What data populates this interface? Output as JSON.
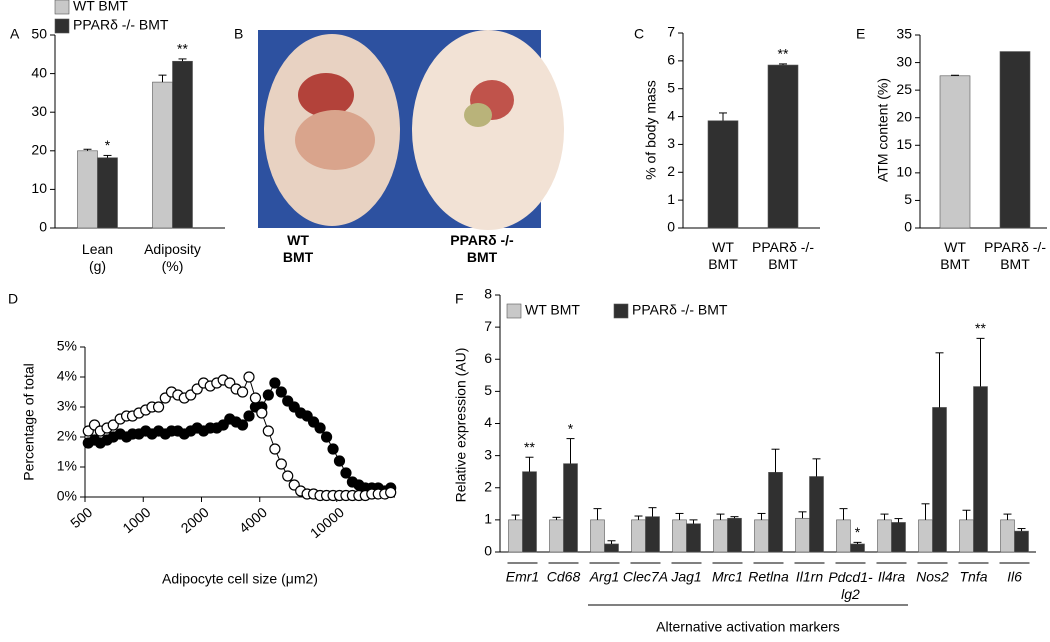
{
  "photo": {
    "panel": "B",
    "labels": [
      "WT\nBMT",
      "PPARδ -/-\nBMT"
    ]
  },
  "chart_data": [
    {
      "panel": "A",
      "type": "bar",
      "categories": [
        "Lean\n(g)",
        "Adiposity\n(%)"
      ],
      "series": [
        {
          "name": "WT BMT",
          "color": "#c8c8c8",
          "values": [
            20,
            37.8
          ],
          "errors": [
            0.4,
            1.8
          ]
        },
        {
          "name": "PPARδ -/- BMT",
          "color": "#303030",
          "values": [
            18.2,
            43.2
          ],
          "errors": [
            0.6,
            0.6
          ],
          "significance": [
            "*",
            "**"
          ]
        }
      ],
      "ylim": [
        0,
        50
      ],
      "yticks": [
        0,
        10,
        20,
        30,
        40,
        50
      ],
      "legend": "above"
    },
    {
      "panel": "C",
      "type": "bar",
      "categories": [
        "WT\nBMT",
        "PPARδ -/-\nBMT"
      ],
      "values": [
        3.85,
        5.85
      ],
      "errors": [
        0.28,
        0.04
      ],
      "colors": [
        "#303030",
        "#303030"
      ],
      "significance": [
        null,
        "**"
      ],
      "ylabel": "% of body mass",
      "ylim": [
        0,
        7
      ],
      "yticks": [
        0,
        1,
        2,
        3,
        4,
        5,
        6,
        7
      ]
    },
    {
      "panel": "E",
      "type": "bar",
      "categories": [
        "WT\nBMT",
        "PPARδ -/-\nBMT"
      ],
      "values": [
        27.6,
        32
      ],
      "errors": [
        0.1,
        null
      ],
      "colors": [
        "#c8c8c8",
        "#303030"
      ],
      "ylabel": "ATM content (%)",
      "ylim": [
        0,
        35
      ],
      "yticks": [
        0,
        5,
        10,
        15,
        20,
        25,
        30,
        35
      ]
    },
    {
      "panel": "D",
      "type": "scatter",
      "line": true,
      "xscale": "log",
      "xlabel": "Adipocyte cell size (μm2)",
      "ylabel": "Percentage of  total",
      "x": [
        520,
        560,
        600,
        650,
        700,
        760,
        820,
        880,
        950,
        1030,
        1110,
        1200,
        1300,
        1400,
        1510,
        1630,
        1760,
        1900,
        2050,
        2220,
        2400,
        2590,
        2800,
        3020,
        3260,
        3520,
        3800,
        4100,
        4430,
        4790,
        5170,
        5580,
        6030,
        6510,
        7030,
        7590,
        8200,
        8860,
        9570,
        10330,
        11160,
        12050,
        13010,
        14050,
        15180,
        16390,
        17700,
        19000
      ],
      "series": [
        {
          "color": "#000000",
          "filled": true,
          "values": [
            1.8,
            1.9,
            1.8,
            1.9,
            2.0,
            2.1,
            2.0,
            2.1,
            2.1,
            2.2,
            2.1,
            2.2,
            2.1,
            2.2,
            2.2,
            2.1,
            2.2,
            2.3,
            2.2,
            2.3,
            2.3,
            2.4,
            2.6,
            2.5,
            2.4,
            2.7,
            3.0,
            3.0,
            3.4,
            3.8,
            3.5,
            3.2,
            3.0,
            2.8,
            2.7,
            2.5,
            2.3,
            2.0,
            1.6,
            1.2,
            0.8,
            0.5,
            0.4,
            0.3,
            0.3,
            0.3,
            0.2,
            0.3
          ]
        },
        {
          "color": "#000000",
          "filled": false,
          "values": [
            2.2,
            2.4,
            2.2,
            2.3,
            2.4,
            2.6,
            2.7,
            2.7,
            2.8,
            2.9,
            3.0,
            3.0,
            3.3,
            3.5,
            3.4,
            3.3,
            3.4,
            3.6,
            3.8,
            3.7,
            3.8,
            3.9,
            3.8,
            3.6,
            3.5,
            4.0,
            3.3,
            2.8,
            2.2,
            1.6,
            1.1,
            0.7,
            0.4,
            0.2,
            0.1,
            0.1,
            0.05,
            0.05,
            0.05,
            0.05,
            0.05,
            0.05,
            0.05,
            0.05,
            0.1,
            0.1,
            0.1,
            0.15
          ]
        }
      ],
      "xlim": [
        500,
        20000
      ],
      "xticks": [
        500,
        1000,
        2000,
        4000,
        10000
      ],
      "ylim": [
        0,
        5
      ],
      "yticks": [
        {
          "value": 0,
          "label": "0%"
        },
        {
          "value": 1,
          "label": "1%"
        },
        {
          "value": 2,
          "label": "2%"
        },
        {
          "value": 3,
          "label": "3%"
        },
        {
          "value": 4,
          "label": "4%"
        },
        {
          "value": 5,
          "label": "5%"
        }
      ]
    },
    {
      "panel": "F",
      "type": "bar",
      "italic_categories": true,
      "categories": [
        "Emr1",
        "Cd68",
        "Arg1",
        "Clec7A",
        "Jag1",
        "Mrc1",
        "Retlna",
        "Il1rn",
        "Pdcd1-\nlg2",
        "Il4ra",
        "Nos2",
        "Tnfa",
        "Il6"
      ],
      "series": [
        {
          "name": "WT BMT",
          "color": "#c8c8c8",
          "values": [
            1,
            1,
            1,
            1,
            1,
            1,
            1,
            1.05,
            1,
            1,
            1,
            1,
            1
          ],
          "errors": [
            0.15,
            0.08,
            0.35,
            0.12,
            0.2,
            0.18,
            0.2,
            0.2,
            0.35,
            0.18,
            0.5,
            0.3,
            0.18
          ]
        },
        {
          "name": "PPARδ -/- BMT",
          "color": "#303030",
          "values": [
            2.5,
            2.75,
            0.25,
            1.1,
            0.88,
            1.05,
            2.48,
            2.35,
            0.25,
            0.92,
            4.5,
            5.15,
            0.65
          ],
          "errors": [
            0.45,
            0.78,
            0.1,
            0.28,
            0.12,
            0.05,
            0.72,
            0.55,
            0.05,
            0.12,
            1.7,
            1.5,
            0.08
          ],
          "significance": [
            "**",
            "*",
            null,
            null,
            null,
            null,
            null,
            null,
            "*",
            null,
            null,
            "**",
            null
          ]
        }
      ],
      "ylabel": "Relative expression (AU)",
      "ylim": [
        0,
        8
      ],
      "yticks": [
        0,
        1,
        2,
        3,
        4,
        5,
        6,
        7,
        8
      ],
      "legend": "upper left",
      "group_label": "Alternative activation markers"
    }
  ]
}
